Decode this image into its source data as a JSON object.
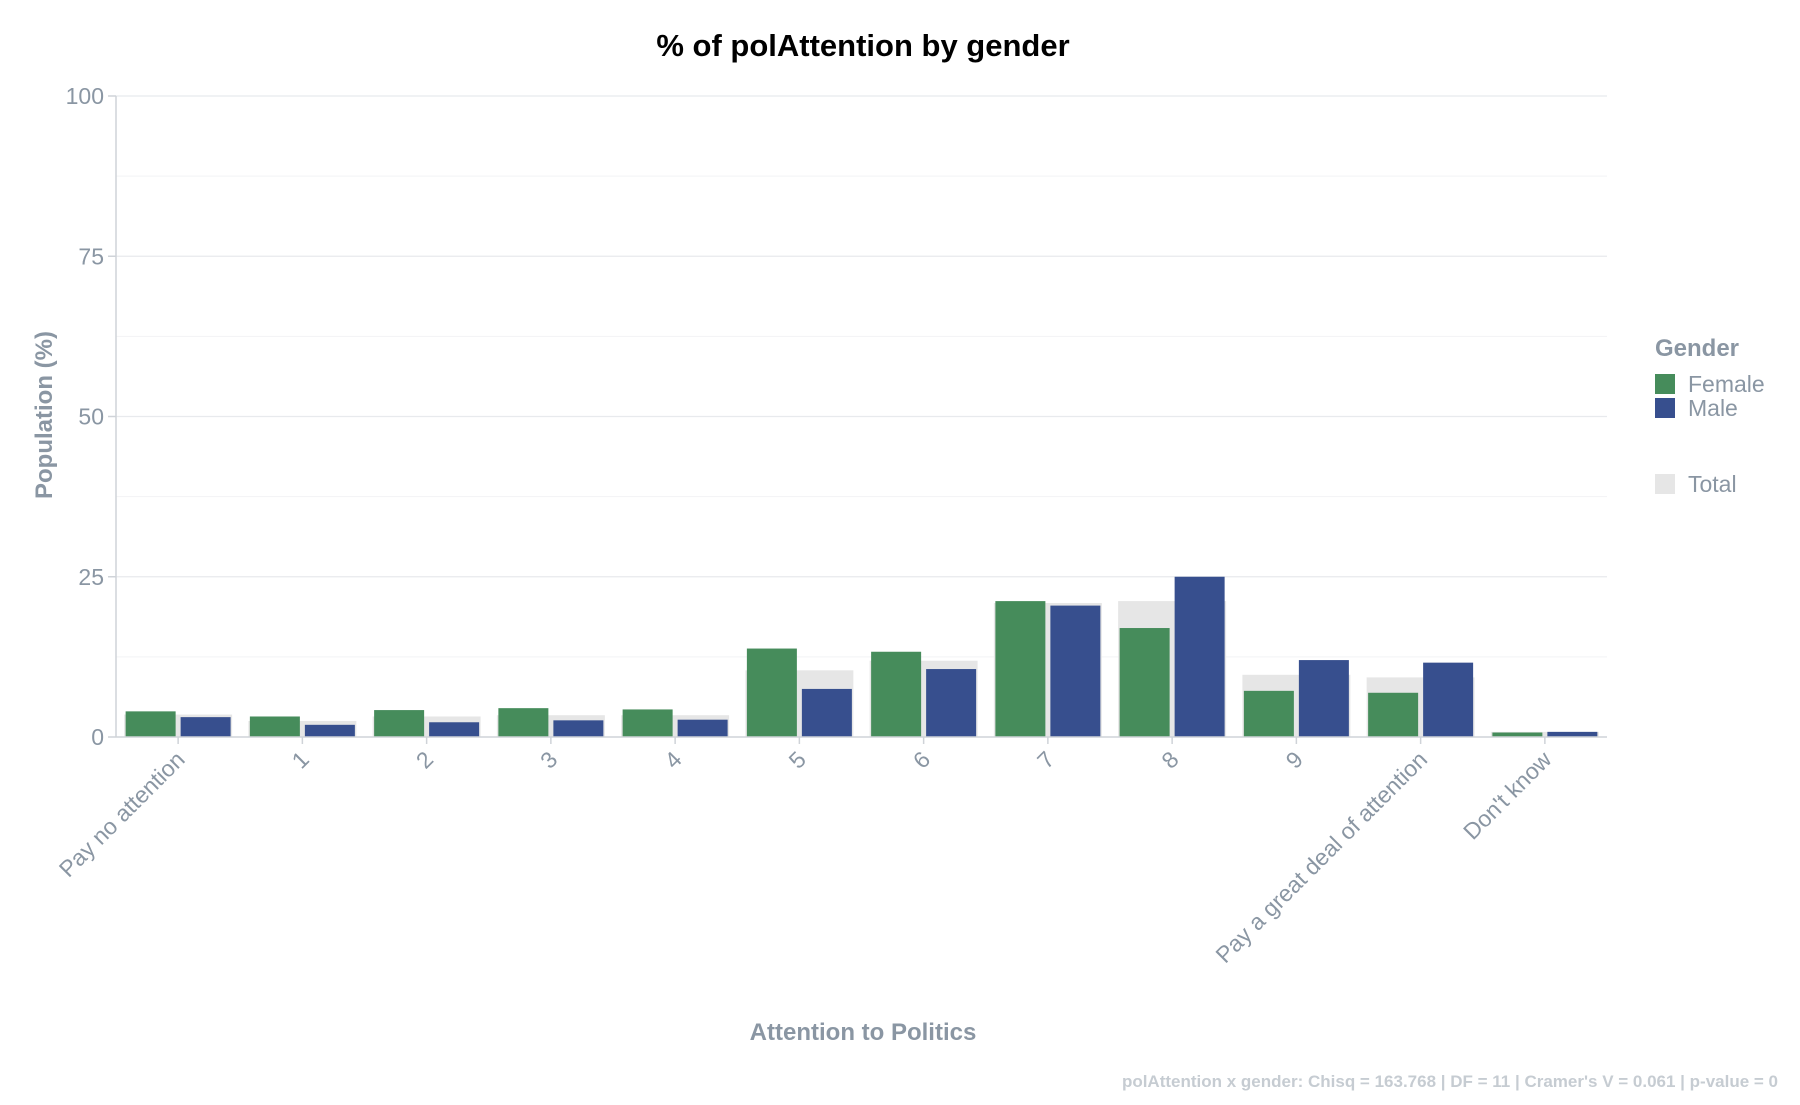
{
  "chart_data": {
    "type": "bar",
    "title": "% of polAttention by gender",
    "xlabel": "Attention to Politics",
    "ylabel": "Population (%)",
    "ylim": [
      0,
      100
    ],
    "yticks": [
      "0",
      "25",
      "50",
      "75",
      "100"
    ],
    "grid": true,
    "legend_position": "right",
    "legend_title": "Gender",
    "categories": [
      "Pay no attention",
      "1",
      "2",
      "3",
      "4",
      "5",
      "6",
      "7",
      "8",
      "9",
      "Pay a great deal of attention",
      "Don't know"
    ],
    "series": [
      {
        "name": "Female",
        "color": "#468c5b",
        "values": [
          4.0,
          3.2,
          4.2,
          4.5,
          4.3,
          13.8,
          13.3,
          21.2,
          17.0,
          7.2,
          6.9,
          0.7
        ]
      },
      {
        "name": "Male",
        "color": "#374f8e",
        "values": [
          3.1,
          1.9,
          2.3,
          2.6,
          2.7,
          7.5,
          10.6,
          20.5,
          25.0,
          12.0,
          11.6,
          0.8
        ]
      },
      {
        "name": "Total",
        "color": "#e6e6e6",
        "values": [
          3.5,
          2.5,
          3.2,
          3.4,
          3.4,
          10.4,
          11.9,
          20.9,
          21.2,
          9.7,
          9.3,
          0.8
        ]
      }
    ],
    "caption": "polAttention x gender: Chisq = 163.768 | DF = 11 | Cramer's V = 0.061 | p-value = 0"
  }
}
